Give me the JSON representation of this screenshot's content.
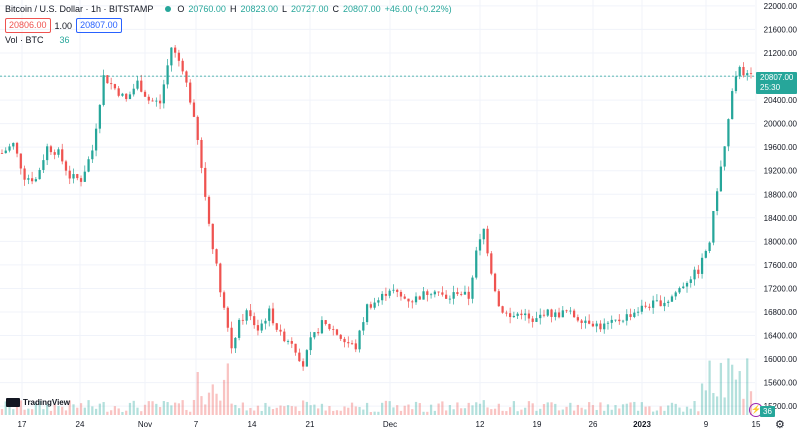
{
  "legend": {
    "symbol": "Bitcoin / U.S. Dollar · 1h · BITSTAMP",
    "ohlc": [
      {
        "k": "O",
        "v": "20760.00"
      },
      {
        "k": "H",
        "v": "20823.00"
      },
      {
        "k": "L",
        "v": "20727.00"
      },
      {
        "k": "C",
        "v": "20807.00"
      }
    ],
    "change": "+46.00 (+0.22%)",
    "sell_price": "20806.00",
    "spread": "1.00",
    "buy_price": "20807.00",
    "volume_label": "Vol · BTC",
    "volume_value": "36"
  },
  "branding": {
    "logo_text": "TradingView"
  },
  "last_price_tag": {
    "price": "20807.00",
    "countdown": "25:30"
  },
  "volume_tag": "36",
  "colors": {
    "up": "#26a69a",
    "down": "#ef5350",
    "grid": "#f0f3fa",
    "axis_text": "#131722",
    "price_line": "#26a69a"
  },
  "chart_data": {
    "type": "candlestick",
    "title": "Bitcoin / U.S. Dollar · 1h · BITSTAMP",
    "y_ticks": [
      15200,
      15600,
      16000,
      16400,
      16800,
      17200,
      17600,
      18000,
      18400,
      18800,
      19200,
      19600,
      20000,
      20400,
      20800,
      21200,
      21600,
      22000
    ],
    "ylim": [
      15050,
      22100
    ],
    "x_ticks": [
      "17",
      "24",
      "Nov",
      "7",
      "14",
      "21",
      "Dec",
      "12",
      "19",
      "26",
      "2023",
      "9",
      "15"
    ],
    "x_tick_bold": [
      "2023"
    ],
    "grid": true,
    "last_price": 20807,
    "close_path": [
      [
        0,
        19500
      ],
      [
        3,
        19650
      ],
      [
        6,
        19100
      ],
      [
        9,
        19050
      ],
      [
        12,
        19600
      ],
      [
        15,
        19500
      ],
      [
        18,
        19100
      ],
      [
        21,
        19050
      ],
      [
        24,
        19550
      ],
      [
        27,
        20800
      ],
      [
        30,
        20600
      ],
      [
        33,
        20400
      ],
      [
        36,
        20700
      ],
      [
        39,
        20400
      ],
      [
        42,
        20350
      ],
      [
        45,
        21300
      ],
      [
        48,
        20950
      ],
      [
        50,
        20400
      ],
      [
        52,
        19700
      ],
      [
        55,
        18300
      ],
      [
        58,
        17200
      ],
      [
        61,
        16200
      ],
      [
        63,
        16600
      ],
      [
        65,
        16800
      ],
      [
        68,
        16500
      ],
      [
        71,
        16800
      ],
      [
        74,
        16400
      ],
      [
        77,
        16300
      ],
      [
        80,
        15900
      ],
      [
        82,
        16300
      ],
      [
        85,
        16600
      ],
      [
        88,
        16500
      ],
      [
        91,
        16300
      ],
      [
        94,
        16200
      ],
      [
        97,
        16900
      ],
      [
        100,
        17000
      ],
      [
        103,
        17200
      ],
      [
        106,
        17050
      ],
      [
        109,
        17000
      ],
      [
        112,
        17100
      ],
      [
        115,
        17200
      ],
      [
        118,
        17000
      ],
      [
        121,
        17150
      ],
      [
        124,
        17050
      ],
      [
        126,
        17800
      ],
      [
        128,
        18200
      ],
      [
        130,
        17500
      ],
      [
        132,
        16900
      ],
      [
        135,
        16700
      ],
      [
        138,
        16800
      ],
      [
        141,
        16600
      ],
      [
        144,
        16800
      ],
      [
        147,
        16750
      ],
      [
        150,
        16800
      ],
      [
        153,
        16700
      ],
      [
        156,
        16650
      ],
      [
        159,
        16550
      ],
      [
        162,
        16600
      ],
      [
        165,
        16700
      ],
      [
        168,
        16800
      ],
      [
        171,
        16900
      ],
      [
        174,
        16950
      ],
      [
        177,
        17000
      ],
      [
        180,
        17200
      ],
      [
        183,
        17400
      ],
      [
        185,
        17500
      ],
      [
        188,
        18000
      ],
      [
        190,
        18900
      ],
      [
        192,
        19600
      ],
      [
        194,
        20500
      ],
      [
        196,
        21000
      ],
      [
        197.5,
        20807
      ]
    ],
    "volume_bars": 200,
    "volume_label": "Vol · BTC",
    "volume_last": 36
  }
}
